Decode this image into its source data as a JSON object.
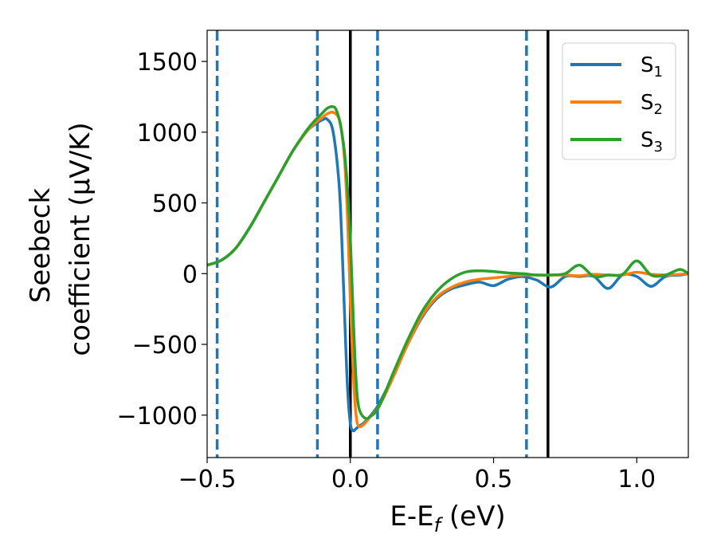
{
  "chart_data": {
    "type": "line",
    "xlabel": "E-E",
    "xlabel_sub": "f",
    "xlabel_unit": " (eV)",
    "ylabel_line1": "Seebeck",
    "ylabel_line2": "coefficient  (μV/K)",
    "xlim": [
      -0.5,
      1.18
    ],
    "ylim": [
      -1300,
      1720
    ],
    "x_ticks": [
      -0.5,
      0.0,
      0.5,
      1.0
    ],
    "x_tick_labels": [
      "−0.5",
      "0.0",
      "0.5",
      "1.0"
    ],
    "y_ticks": [
      -1000,
      -500,
      0,
      500,
      1000,
      1500
    ],
    "y_tick_labels": [
      "−1000",
      "−500",
      "0",
      "500",
      "1000",
      "1500"
    ],
    "grid": false,
    "legend_position": "top-right",
    "vertical_lines": [
      {
        "x": -0.465,
        "style": "dashed",
        "color": "#1f77b4"
      },
      {
        "x": -0.115,
        "style": "dashed",
        "color": "#1f77b4"
      },
      {
        "x": 0.0,
        "style": "solid",
        "color": "#000000"
      },
      {
        "x": 0.095,
        "style": "dashed",
        "color": "#1f77b4"
      },
      {
        "x": 0.615,
        "style": "dashed",
        "color": "#1f77b4"
      },
      {
        "x": 0.69,
        "style": "solid",
        "color": "#000000"
      }
    ],
    "series": [
      {
        "name": "S",
        "sub": "1",
        "color": "#1f77b4",
        "x": [
          -0.5,
          -0.45,
          -0.4,
          -0.35,
          -0.3,
          -0.25,
          -0.2,
          -0.15,
          -0.12,
          -0.1,
          -0.08,
          -0.06,
          -0.04,
          -0.03,
          -0.02,
          -0.01,
          0.0,
          0.01,
          0.02,
          0.03,
          0.05,
          0.08,
          0.1,
          0.15,
          0.2,
          0.25,
          0.3,
          0.35,
          0.4,
          0.45,
          0.5,
          0.55,
          0.6,
          0.65,
          0.7,
          0.75,
          0.8,
          0.85,
          0.9,
          0.95,
          1.0,
          1.05,
          1.1,
          1.15,
          1.18
        ],
        "y": [
          60,
          95,
          180,
          330,
          510,
          690,
          870,
          1010,
          1060,
          1085,
          1090,
          1000,
          650,
          250,
          -300,
          -800,
          -1060,
          -1110,
          -1095,
          -1080,
          -1050,
          -980,
          -920,
          -720,
          -500,
          -310,
          -180,
          -110,
          -80,
          -60,
          -85,
          -40,
          -20,
          -45,
          -95,
          -20,
          -20,
          -20,
          -105,
          -10,
          -20,
          -90,
          -20,
          -10,
          0
        ]
      },
      {
        "name": "S",
        "sub": "2",
        "color": "#ff7f0e",
        "x": [
          -0.5,
          -0.45,
          -0.4,
          -0.35,
          -0.3,
          -0.25,
          -0.2,
          -0.15,
          -0.12,
          -0.1,
          -0.08,
          -0.06,
          -0.04,
          -0.03,
          -0.02,
          -0.01,
          0.0,
          0.01,
          0.02,
          0.03,
          0.05,
          0.07,
          0.1,
          0.15,
          0.2,
          0.25,
          0.3,
          0.35,
          0.4,
          0.45,
          0.5,
          0.55,
          0.6,
          0.65,
          0.7,
          0.75,
          0.8,
          0.85,
          0.9,
          0.95,
          1.0,
          1.05,
          1.1,
          1.15,
          1.18
        ],
        "y": [
          60,
          95,
          180,
          330,
          510,
          690,
          870,
          1010,
          1070,
          1100,
          1130,
          1140,
          1100,
          1000,
          800,
          400,
          -200,
          -700,
          -1000,
          -1080,
          -1060,
          -1010,
          -940,
          -730,
          -500,
          -300,
          -170,
          -100,
          -60,
          -40,
          -30,
          -20,
          -10,
          -10,
          -10,
          -10,
          -15,
          -5,
          -10,
          -10,
          10,
          -5,
          -10,
          -5,
          0
        ]
      },
      {
        "name": "S",
        "sub": "3",
        "color": "#2ca02c",
        "x": [
          -0.5,
          -0.45,
          -0.4,
          -0.35,
          -0.3,
          -0.25,
          -0.2,
          -0.15,
          -0.12,
          -0.1,
          -0.08,
          -0.06,
          -0.05,
          -0.04,
          -0.03,
          -0.02,
          -0.01,
          0.0,
          0.01,
          0.02,
          0.03,
          0.05,
          0.07,
          0.1,
          0.15,
          0.2,
          0.25,
          0.3,
          0.35,
          0.4,
          0.45,
          0.5,
          0.55,
          0.6,
          0.65,
          0.7,
          0.75,
          0.8,
          0.85,
          0.9,
          0.95,
          1.0,
          1.05,
          1.1,
          1.15,
          1.18
        ],
        "y": [
          60,
          95,
          180,
          330,
          510,
          690,
          870,
          1020,
          1090,
          1130,
          1170,
          1180,
          1160,
          1100,
          1000,
          850,
          600,
          250,
          -300,
          -750,
          -950,
          -1020,
          -1010,
          -940,
          -700,
          -470,
          -270,
          -130,
          -40,
          10,
          20,
          15,
          5,
          0,
          -10,
          -10,
          0,
          60,
          -20,
          -10,
          -5,
          90,
          -10,
          -10,
          30,
          0
        ]
      }
    ]
  }
}
